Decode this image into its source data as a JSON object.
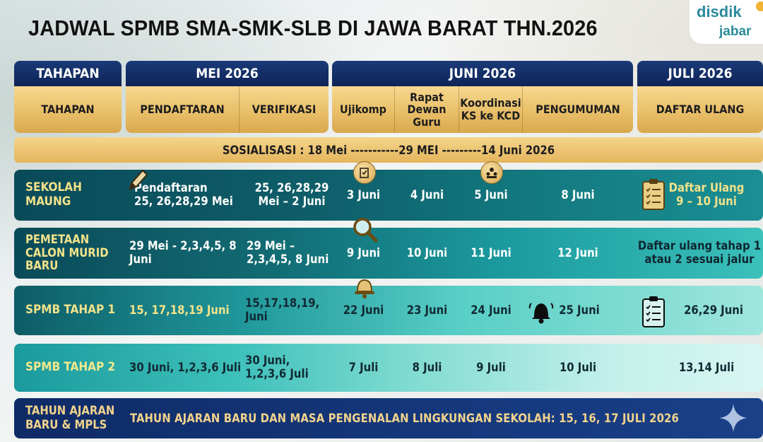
{
  "title": "JADWAL SPMB SMA-SMK-SLB DI JAWA BARAT THN.2026",
  "logo": {
    "line1": "disdik",
    "line2": "jabar"
  },
  "colors": {
    "navy": "#0e2457",
    "gold": "#e9bf68",
    "teal_dark": "#0c5f68",
    "teal_mid": "#1a8f97",
    "teal_light": "#6fd6cf",
    "yellow_text": "#f2e28a"
  },
  "header": {
    "tahapan": "TAHAPAN",
    "months": [
      "MEI 2026",
      "JUNI 2026",
      "JULI 2026"
    ],
    "subcolumns": {
      "tahapan": "TAHAPAN",
      "pendaftaran": "PENDAFTARAN",
      "verifikasi": "VERIFIKASI",
      "ujikomp": "Ujikomp",
      "rapat": "Rapat\nDewan\nGuru",
      "koordinasi": "Koordinasi\nKS ke KCD",
      "pengumuman": "PENGUMUMAN",
      "daftar_ulang": "DAFTAR ULANG"
    }
  },
  "sosialisasi": "SOSIALISASI : 18 Mei -----------29 MEI ---------14 Juni 2026",
  "rows": [
    {
      "label": "SEKOLAH\nMAUNG",
      "pendaftaran": "Pendaftaran\n25, 26,28,29 Mei",
      "verifikasi": "25, 26,28,29\nMei – 2 Juni",
      "ujikomp": "3 Juni",
      "rapat": "4 Juni",
      "koordinasi": "5 Juni",
      "pengumuman": "8 Juni",
      "daftar_ulang": "Daftar Ulang\n9 – 10 Juni"
    },
    {
      "label": "PEMETAAN\nCALON MURID\nBARU",
      "pendaftaran": "29 Mei - 2,3,4,5, 8\nJuni",
      "verifikasi": "29 Mei –\n2,3,4,5, 8 Juni",
      "ujikomp": "9 Juni",
      "rapat": "10 Juni",
      "koordinasi": "11 Juni",
      "pengumuman": "12 Juni",
      "daftar_ulang": "Daftar ulang tahap 1\natau 2 sesuai jalur"
    },
    {
      "label": "SPMB TAHAP 1",
      "pendaftaran": "15, 17,18,19 Juni",
      "verifikasi": "15,17,18,19,\nJuni",
      "ujikomp": "22 Juni",
      "rapat": "23 Juni",
      "koordinasi": "24 Juni",
      "pengumuman": "25 Juni",
      "daftar_ulang": "26,29 Juni"
    },
    {
      "label": "SPMB TAHAP 2",
      "pendaftaran": "30 Juni, 1,2,3,6 Juli",
      "verifikasi": "30 Juni,\n1,2,3,6 Juli",
      "ujikomp": "7 Juli",
      "rapat": "8 Juli",
      "koordinasi": "9 Juli",
      "pengumuman": "10 Juli",
      "daftar_ulang": "13,14 Juli"
    }
  ],
  "footer": {
    "label": "TAHUN AJARAN\nBARU & MPLS",
    "text": "TAHUN AJARAN BARU DAN MASA PENGENALAN LINGKUNGAN SEKOLAH: 15, 16, 17 JULI 2026"
  },
  "icons": [
    "pencil-icon",
    "exam-icon",
    "team-icon",
    "checklist-icon",
    "magnifier-icon",
    "school-bell-icon",
    "bell-icon",
    "sparkle-icon"
  ]
}
